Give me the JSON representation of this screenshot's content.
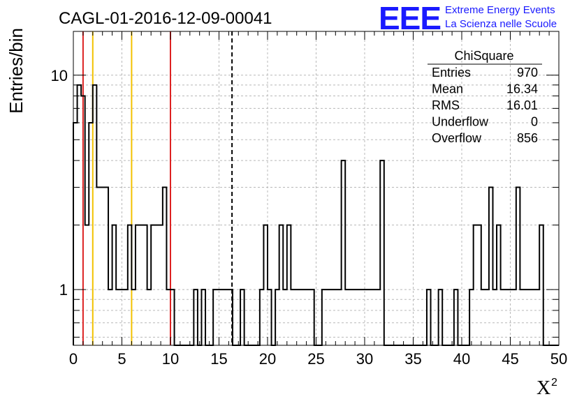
{
  "chart_data": {
    "type": "bar",
    "title": "CAGL-01-2016-12-09-00041",
    "xlabel": "X",
    "xlabel_sup": "2",
    "ylabel": "Entries/bin",
    "x_range": [
      0,
      50
    ],
    "y_range": [
      0.55,
      16
    ],
    "y_scale": "log",
    "x_ticks": [
      "0",
      "5",
      "10",
      "15",
      "20",
      "25",
      "30",
      "35",
      "40",
      "45",
      "50"
    ],
    "y_ticks": [
      "1",
      "10"
    ],
    "grid": true,
    "bin_width": 0.4,
    "bins": [
      [
        0.0,
        6
      ],
      [
        0.4,
        9
      ],
      [
        0.8,
        8
      ],
      [
        1.2,
        2
      ],
      [
        1.6,
        6
      ],
      [
        2.0,
        9
      ],
      [
        2.4,
        3
      ],
      [
        2.8,
        3
      ],
      [
        3.2,
        3
      ],
      [
        3.6,
        1
      ],
      [
        4.0,
        2
      ],
      [
        4.4,
        1
      ],
      [
        4.8,
        1
      ],
      [
        5.2,
        1
      ],
      [
        5.6,
        2
      ],
      [
        6.0,
        1
      ],
      [
        6.4,
        2
      ],
      [
        6.8,
        2
      ],
      [
        7.2,
        2
      ],
      [
        7.6,
        1
      ],
      [
        8.0,
        2
      ],
      [
        8.4,
        2
      ],
      [
        8.8,
        2
      ],
      [
        9.2,
        3
      ],
      [
        9.6,
        1
      ],
      [
        10.0,
        1
      ],
      [
        12.4,
        1
      ],
      [
        13.2,
        1
      ],
      [
        14.4,
        1
      ],
      [
        14.8,
        1
      ],
      [
        15.2,
        1
      ],
      [
        15.6,
        1
      ],
      [
        16.0,
        1
      ],
      [
        17.2,
        1
      ],
      [
        19.2,
        1
      ],
      [
        19.6,
        2
      ],
      [
        20.0,
        1
      ],
      [
        20.8,
        1
      ],
      [
        21.2,
        2
      ],
      [
        21.6,
        1
      ],
      [
        22.0,
        2
      ],
      [
        22.4,
        1
      ],
      [
        22.8,
        1
      ],
      [
        23.2,
        1
      ],
      [
        23.6,
        1
      ],
      [
        24.0,
        1
      ],
      [
        24.4,
        1
      ],
      [
        25.6,
        1
      ],
      [
        26.0,
        1
      ],
      [
        26.4,
        1
      ],
      [
        26.8,
        1
      ],
      [
        27.2,
        1
      ],
      [
        27.6,
        4
      ],
      [
        28.0,
        1
      ],
      [
        28.4,
        1
      ],
      [
        28.8,
        1
      ],
      [
        29.2,
        1
      ],
      [
        29.6,
        1
      ],
      [
        30.0,
        1
      ],
      [
        30.4,
        1
      ],
      [
        30.8,
        1
      ],
      [
        31.2,
        1
      ],
      [
        31.6,
        4
      ],
      [
        36.4,
        1
      ],
      [
        37.6,
        1
      ],
      [
        39.2,
        1
      ],
      [
        40.8,
        1
      ],
      [
        41.2,
        2
      ],
      [
        41.6,
        2
      ],
      [
        42.0,
        1
      ],
      [
        42.4,
        1
      ],
      [
        42.8,
        3
      ],
      [
        43.2,
        1
      ],
      [
        43.6,
        2
      ],
      [
        44.0,
        1
      ],
      [
        44.4,
        1
      ],
      [
        44.8,
        1
      ],
      [
        45.2,
        1
      ],
      [
        45.6,
        3
      ],
      [
        46.0,
        1
      ],
      [
        46.4,
        1
      ],
      [
        46.8,
        1
      ],
      [
        47.2,
        1
      ],
      [
        47.6,
        1
      ],
      [
        48.0,
        2
      ]
    ],
    "vertical_lines": [
      {
        "x": 1.0,
        "color": "#dd2222",
        "style": "solid"
      },
      {
        "x": 2.0,
        "color": "#f2c200",
        "style": "solid"
      },
      {
        "x": 6.0,
        "color": "#f2c200",
        "style": "solid"
      },
      {
        "x": 10.0,
        "color": "#dd2222",
        "style": "solid"
      },
      {
        "x": 16.34,
        "color": "#000000",
        "style": "dashed"
      }
    ],
    "stats_box": {
      "title": "ChiSquare",
      "rows": [
        {
          "label": "Entries",
          "value": "970"
        },
        {
          "label": "Mean",
          "value": "16.34"
        },
        {
          "label": "RMS",
          "value": "16.01"
        },
        {
          "label": "Underflow",
          "value": "0"
        },
        {
          "label": "Overflow",
          "value": "856"
        }
      ]
    }
  },
  "logo": {
    "mark": "EEE",
    "line1": "Extreme Energy Events",
    "line2": "La Scienza nelle Scuole",
    "color": "#1a1aff"
  },
  "colors": {
    "histogram": "#000000",
    "grid": "#b8b8b8",
    "red_line": "#dd2222",
    "yellow_line": "#f2c200"
  }
}
